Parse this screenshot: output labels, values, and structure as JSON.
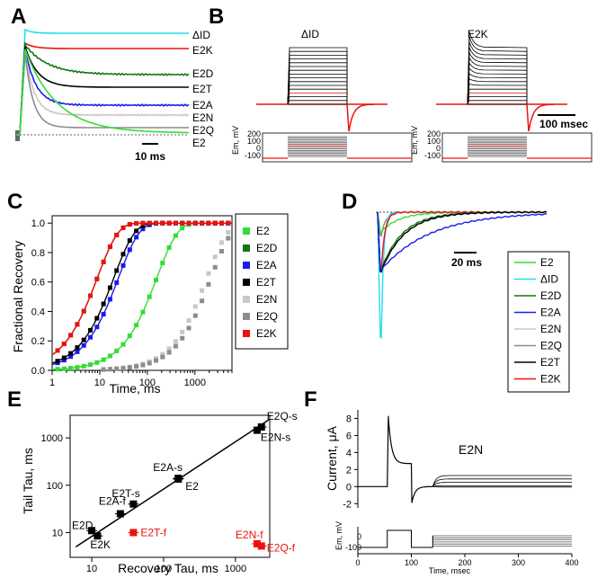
{
  "panels": {
    "A": {
      "label": "A",
      "scale_label": "10 ms",
      "trace_labels": [
        "ΔID",
        "E2K",
        "E2D",
        "E2T",
        "E2A",
        "E2N",
        "E2Q",
        "E2"
      ]
    },
    "B": {
      "label": "B",
      "titles": [
        "ΔID",
        "E2K"
      ],
      "scale_label": "100 msec",
      "ylabel": "Em, mV",
      "yticks": [
        "200",
        "100",
        "0",
        "-100"
      ]
    },
    "D": {
      "label": "D",
      "scale_label": "20 ms",
      "legend": [
        "E2",
        "ΔID",
        "E2D",
        "E2A",
        "E2N",
        "E2Q",
        "E2T",
        "E2K"
      ]
    },
    "F": {
      "label": "F",
      "title": "E2N",
      "inset_ylabel": "Em, mV",
      "inset_yticks": [
        "0",
        "-100"
      ]
    }
  },
  "colors": {
    "E2": "#33dd33",
    "DID": "#22ddee",
    "E2D": "#117711",
    "E2A": "#1a1aee",
    "E2T": "#000000",
    "E2N": "#c8c8c8",
    "E2Q": "#8c8c8c",
    "E2K": "#ee1111"
  },
  "chart_data": [
    {
      "id": "C",
      "label": "C",
      "type": "scatter",
      "xlabel": "Time, ms",
      "ylabel": "Fractional Recovery",
      "xscale": "log",
      "xlim": [
        1,
        6000
      ],
      "ylim": [
        0,
        1.05
      ],
      "xticks": [
        1,
        10,
        100,
        1000
      ],
      "yticks": [
        0.0,
        0.2,
        0.4,
        0.6,
        0.8,
        1.0
      ],
      "legend_position": "right",
      "series": [
        {
          "name": "E2",
          "color": "#33dd33",
          "tau": 160,
          "curve": true
        },
        {
          "name": "E2D",
          "color": "#117711",
          "tau": 9,
          "curve": true
        },
        {
          "name": "E2A",
          "color": "#1a1aee",
          "tau": 25,
          "curve": true
        },
        {
          "name": "E2T",
          "color": "#000000",
          "tau": 20,
          "curve": true
        },
        {
          "name": "E2N",
          "color": "#c8c8c8",
          "tau": 1800,
          "curve": false
        },
        {
          "name": "E2Q",
          "color": "#8c8c8c",
          "tau": 2200,
          "curve": false
        },
        {
          "name": "E2K",
          "color": "#ee1111",
          "tau": 9,
          "curve": true
        }
      ]
    },
    {
      "id": "E",
      "label": "E",
      "type": "scatter",
      "xlabel": "Recovery Tau, ms",
      "ylabel": "Tail Tau, ms",
      "xscale": "log",
      "yscale": "log",
      "xlim": [
        5,
        3000
      ],
      "ylim": [
        3,
        3000
      ],
      "xticks": [
        10,
        100,
        1000
      ],
      "yticks": [
        10,
        100,
        1000
      ],
      "points": [
        {
          "label": "E2Q-s",
          "x": 2300,
          "y": 1700,
          "color": "#000000"
        },
        {
          "label": "E2N-s",
          "x": 2000,
          "y": 1450,
          "color": "#000000"
        },
        {
          "label": "E2A-s",
          "x": 160,
          "y": 140,
          "color": "#000000"
        },
        {
          "label": "E2",
          "x": 160,
          "y": 135,
          "color": "#000000"
        },
        {
          "label": "E2T-s",
          "x": 38,
          "y": 40,
          "color": "#000000"
        },
        {
          "label": "E2A-f",
          "x": 25,
          "y": 25,
          "color": "#000000"
        },
        {
          "label": "E2D",
          "x": 10,
          "y": 11,
          "color": "#000000"
        },
        {
          "label": "E2K",
          "x": 12,
          "y": 8.5,
          "color": "#000000"
        },
        {
          "label": "E2T-f",
          "x": 38,
          "y": 10,
          "color": "#ee1111"
        },
        {
          "label": "E2N-f",
          "x": 2000,
          "y": 5.8,
          "color": "#ee1111"
        },
        {
          "label": "E2Q-f",
          "x": 2300,
          "y": 5.2,
          "color": "#ee1111"
        }
      ]
    },
    {
      "id": "F",
      "label": "F",
      "type": "line",
      "xlabel": "Time, msec",
      "ylabel": "Current, μA",
      "xlim": [
        0,
        400
      ],
      "ylim": [
        -2.5,
        9
      ],
      "xticks": [
        0,
        100,
        200,
        300,
        400
      ],
      "yticks": [
        -2,
        0,
        2,
        4,
        6,
        8
      ],
      "peak": 8.2,
      "plateau": 2.7,
      "tail_min": -1.9,
      "steady_levels": [
        1.3,
        0.9,
        0.5,
        0.1,
        -0.05
      ]
    }
  ]
}
